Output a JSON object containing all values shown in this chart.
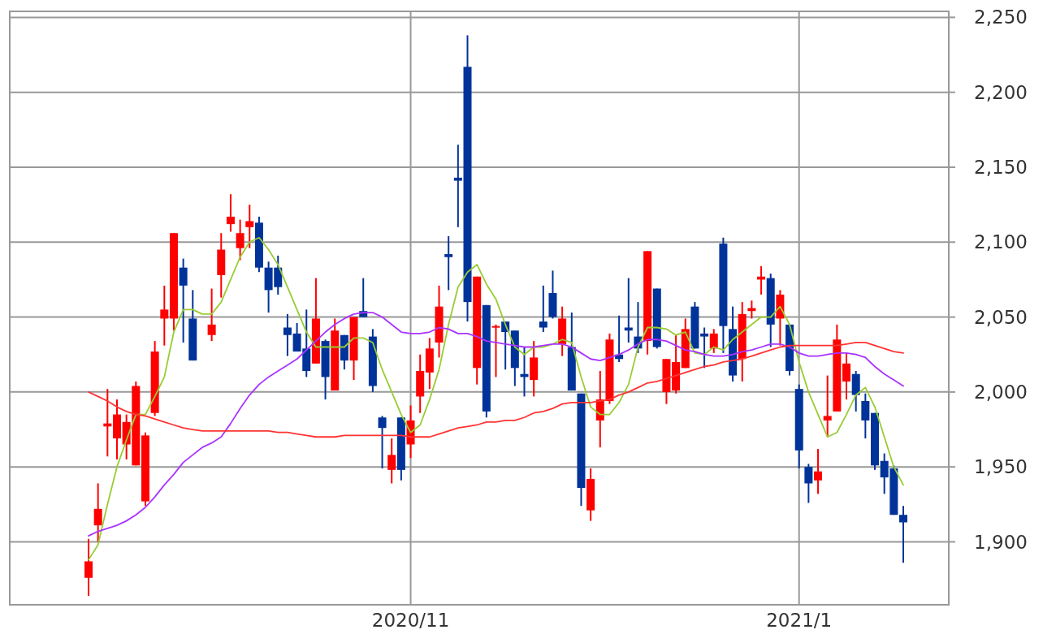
{
  "chart_data": {
    "type": "candlestick",
    "categories": [
      null,
      null,
      null,
      null,
      null,
      null,
      null,
      null,
      null,
      null,
      null,
      null,
      null,
      null,
      null,
      null,
      null,
      null,
      null,
      null,
      null,
      null,
      null,
      null,
      null,
      null,
      null,
      null,
      null,
      null,
      null,
      null,
      null,
      null,
      "2020/11",
      null,
      null,
      null,
      null,
      null,
      null,
      null,
      null,
      null,
      null,
      null,
      null,
      null,
      null,
      null,
      null,
      null,
      null,
      null,
      null,
      null,
      null,
      null,
      null,
      null,
      null,
      null,
      null,
      null,
      null,
      null,
      null,
      null,
      null,
      null,
      null,
      null,
      null,
      null,
      null,
      "2021/1",
      null,
      null,
      null,
      null,
      null,
      null,
      null,
      null,
      null,
      null,
      null
    ],
    "ohlc": [
      [
        1876,
        1902,
        1864,
        1887
      ],
      [
        1911,
        1939,
        1900,
        1922
      ],
      [
        1977,
        2002,
        1957,
        1979
      ],
      [
        1969,
        1995,
        1955,
        1985
      ],
      [
        1965,
        1985,
        1955,
        1980
      ],
      [
        1951,
        2007,
        1951,
        2004
      ],
      [
        1927,
        1973,
        1924,
        1971
      ],
      [
        1986,
        2034,
        1984,
        2027
      ],
      [
        2049,
        2071,
        2031,
        2055
      ],
      [
        2049,
        2106,
        2041,
        2106
      ],
      [
        2083,
        2089,
        2033,
        2071
      ],
      [
        2049,
        2068,
        2021,
        2021
      ],
      null,
      [
        2038,
        2069,
        2034,
        2045
      ],
      [
        2078,
        2106,
        2063,
        2095
      ],
      [
        2112,
        2132,
        2107,
        2117
      ],
      [
        2096,
        2115,
        2088,
        2106
      ],
      [
        2110,
        2125,
        2096,
        2114
      ],
      [
        2113,
        2117,
        2080,
        2083
      ],
      [
        2083,
        2087,
        2053,
        2068
      ],
      [
        2083,
        2091,
        2065,
        2070
      ],
      [
        2043,
        2052,
        2024,
        2038
      ],
      [
        2039,
        2046,
        2027,
        2027
      ],
      [
        2029,
        2055,
        2010,
        2014
      ],
      [
        2019,
        2076,
        2019,
        2049
      ],
      [
        2034,
        2035,
        1995,
        2010
      ],
      [
        2001,
        2049,
        2001,
        2041
      ],
      [
        2038,
        2038,
        2015,
        2021
      ],
      [
        2021,
        2050,
        2008,
        2050
      ],
      [
        2054,
        2076,
        2050,
        2050
      ],
      [
        2037,
        2042,
        2000,
        2004
      ],
      [
        1983,
        1984,
        1949,
        1976
      ],
      [
        1948,
        1969,
        1939,
        1958
      ],
      [
        1983,
        1983,
        1941,
        1948
      ],
      [
        1965,
        1991,
        1956,
        1981
      ],
      [
        1997,
        2025,
        1986,
        2014
      ],
      [
        2013,
        2036,
        2002,
        2029
      ],
      [
        2033,
        2071,
        2023,
        2057
      ],
      [
        2092,
        2104,
        2068,
        2090
      ],
      [
        2143,
        2165,
        2110,
        2141
      ],
      [
        2217,
        2238,
        2047,
        2060
      ],
      [
        2016,
        2077,
        2005,
        2077
      ],
      [
        2058,
        2058,
        1983,
        1987
      ],
      [
        2043,
        2045,
        2010,
        2044
      ],
      [
        2047,
        2047,
        2015,
        2040
      ],
      [
        2041,
        2041,
        2004,
        2016
      ],
      [
        2012,
        2030,
        1997,
        2010
      ],
      [
        2008,
        2034,
        1997,
        2023
      ],
      [
        2047,
        2071,
        2040,
        2043
      ],
      [
        2066,
        2081,
        2049,
        2050
      ],
      [
        2032,
        2057,
        2024,
        2049
      ],
      [
        2030,
        2053,
        2001,
        2001
      ],
      [
        1999,
        1999,
        1924,
        1936
      ],
      [
        1921,
        1949,
        1914,
        1942
      ],
      [
        1981,
        2014,
        1963,
        1995
      ],
      [
        1994,
        2039,
        1992,
        2035
      ],
      [
        2025,
        2051,
        2020,
        2022
      ],
      [
        2043,
        2076,
        2033,
        2041
      ],
      [
        2037,
        2060,
        2026,
        2029
      ],
      [
        2034,
        2094,
        2025,
        2094
      ],
      [
        2069,
        2069,
        2029,
        2030
      ],
      [
        2000,
        2022,
        1992,
        2022
      ],
      [
        2001,
        2038,
        1999,
        2020
      ],
      [
        2016,
        2049,
        2016,
        2042
      ],
      [
        2057,
        2060,
        2029,
        2029
      ],
      [
        2039,
        2043,
        2016,
        2037
      ],
      [
        2029,
        2042,
        2026,
        2039
      ],
      [
        2099,
        2103,
        2026,
        2044
      ],
      [
        2042,
        2057,
        2007,
        2011
      ],
      [
        2022,
        2060,
        2007,
        2052
      ],
      [
        2054,
        2061,
        2049,
        2056
      ],
      [
        2075,
        2084,
        2065,
        2077
      ],
      [
        2076,
        2079,
        2030,
        2045
      ],
      [
        2049,
        2068,
        2031,
        2065
      ],
      [
        2045,
        2045,
        2011,
        2014
      ],
      [
        2002,
        2005,
        1949,
        1961
      ],
      [
        1950,
        1952,
        1926,
        1939
      ],
      [
        1941,
        1962,
        1932,
        1947
      ],
      [
        1981,
        2011,
        1970,
        1984
      ],
      [
        1987,
        2045,
        1987,
        2035
      ],
      [
        2007,
        2026,
        1995,
        2019
      ],
      [
        2012,
        2014,
        1987,
        1998
      ],
      [
        1994,
        1999,
        1969,
        1981
      ],
      [
        1986,
        1986,
        1948,
        1951
      ],
      [
        1954,
        1959,
        1932,
        1943
      ],
      [
        1949,
        1951,
        1918,
        1918
      ],
      [
        1918,
        1924,
        1886,
        1913
      ]
    ],
    "series": [
      {
        "type": "line",
        "color": "#99cc33",
        "values": [
          1888,
          1898,
          1925,
          1950,
          1968,
          1985,
          1985,
          1997,
          2010,
          2040,
          2055,
          2055,
          2052,
          2052,
          2060,
          2075,
          2090,
          2100,
          2103,
          2095,
          2085,
          2070,
          2055,
          2040,
          2030,
          2030,
          2030,
          2030,
          2036,
          2036,
          2033,
          2015,
          2000,
          1985,
          1973,
          1978,
          1995,
          2015,
          2045,
          2070,
          2080,
          2085,
          2072,
          2062,
          2045,
          2030,
          2025,
          2030,
          2030,
          2032,
          2035,
          2033,
          2010,
          1990,
          1985,
          1985,
          1993,
          2005,
          2030,
          2043,
          2043,
          2042,
          2038,
          2040,
          2026,
          2025,
          2030,
          2028,
          2035,
          2040,
          2045,
          2050,
          2050,
          2057,
          2045,
          2020,
          2000,
          1985,
          1970,
          1973,
          1985,
          1998,
          2003,
          1990,
          1970,
          1950,
          1938
        ]
      },
      {
        "type": "line",
        "color": "#aa33ff",
        "values": [
          1904,
          1907,
          1909,
          1911,
          1914,
          1918,
          1923,
          1930,
          1938,
          1945,
          1953,
          1958,
          1963,
          1966,
          1970,
          1979,
          1989,
          1998,
          2005,
          2010,
          2014,
          2018,
          2022,
          2028,
          2034,
          2040,
          2045,
          2049,
          2052,
          2053,
          2053,
          2050,
          2045,
          2040,
          2039,
          2039,
          2040,
          2043,
          2042,
          2039,
          2039,
          2037,
          2034,
          2033,
          2032,
          2031,
          2030,
          2030,
          2031,
          2032,
          2032,
          2030,
          2026,
          2022,
          2021,
          2023,
          2025,
          2028,
          2032,
          2035,
          2035,
          2034,
          2031,
          2028,
          2027,
          2025,
          2024,
          2024,
          2025,
          2027,
          2028,
          2030,
          2032,
          2032,
          2030,
          2026,
          2024,
          2024,
          2025,
          2026,
          2026,
          2025,
          2023,
          2017,
          2012,
          2008,
          2004
        ]
      },
      {
        "type": "line",
        "color": "#ff3333",
        "values": [
          2000,
          1997,
          1994,
          1990,
          1987,
          1985,
          1984,
          1982,
          1980,
          1978,
          1976,
          1975,
          1974,
          1974,
          1974,
          1974,
          1974,
          1974,
          1974,
          1974,
          1973,
          1973,
          1972,
          1971,
          1970,
          1970,
          1970,
          1971,
          1971,
          1971,
          1971,
          1971,
          1971,
          1971,
          1970,
          1970,
          1970,
          1972,
          1974,
          1976,
          1977,
          1978,
          1980,
          1980,
          1981,
          1981,
          1983,
          1986,
          1987,
          1989,
          1992,
          1993,
          1993,
          1993,
          1994,
          1995,
          1998,
          2000,
          2003,
          2006,
          2007,
          2009,
          2011,
          2013,
          2015,
          2017,
          2018,
          2020,
          2021,
          2022,
          2024,
          2026,
          2028,
          2030,
          2031,
          2031,
          2031,
          2031,
          2031,
          2031,
          2032,
          2033,
          2033,
          2031,
          2029,
          2027,
          2026
        ]
      }
    ],
    "ylim": [
      1858,
      2254
    ],
    "yticks": [
      {
        "value": 1900,
        "label": "1,900"
      },
      {
        "value": 1950,
        "label": "1,950"
      },
      {
        "value": 2000,
        "label": "2,000"
      },
      {
        "value": 2050,
        "label": "2,050"
      },
      {
        "value": 2100,
        "label": "2,100"
      },
      {
        "value": 2150,
        "label": "2,150"
      },
      {
        "value": 2200,
        "label": "2,200"
      },
      {
        "value": 2250,
        "label": "2,250"
      }
    ],
    "grid": true
  }
}
